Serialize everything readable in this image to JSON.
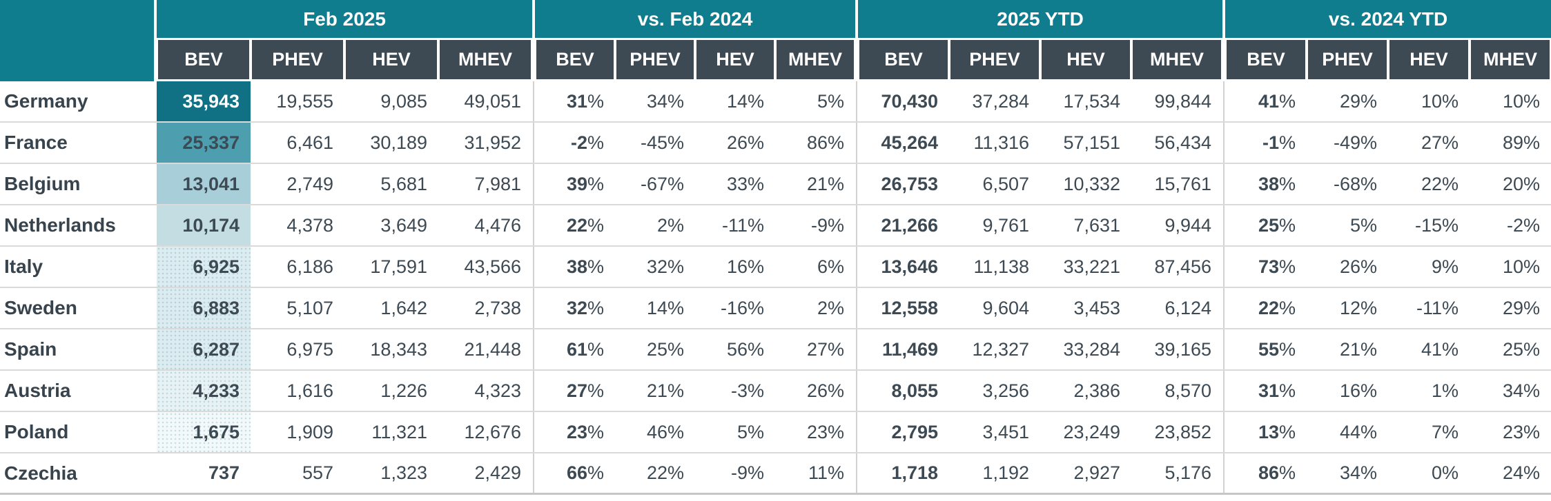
{
  "colors": {
    "header_teal": "#0f7d8d",
    "subheader_slate": "#3d4953",
    "body_text": "#3d4a54",
    "row_line": "#dadada",
    "group_divider_line": "#d2d2d2",
    "bottom_line": "#c3c7c9",
    "heat_scale_max": "#0f7183",
    "heat_scale_min": "#ffffff"
  },
  "chart_data": {
    "type": "table",
    "legend_note": "BEV column for Feb 2025 is shaded as a heatmap by sales volume",
    "col_groups": [
      {
        "label": "Feb 2025",
        "sub": [
          "BEV",
          "PHEV",
          "HEV",
          "MHEV"
        ]
      },
      {
        "label": "vs. Feb 2024",
        "sub": [
          "BEV",
          "PHEV",
          "HEV",
          "MHEV"
        ]
      },
      {
        "label": "2025 YTD",
        "sub": [
          "BEV",
          "PHEV",
          "HEV",
          "MHEV"
        ]
      },
      {
        "label": "vs. 2024 YTD",
        "sub": [
          "BEV",
          "PHEV",
          "HEV",
          "MHEV"
        ]
      }
    ],
    "rows": [
      {
        "country": "Germany",
        "heat": {
          "bg": "#0f7183",
          "light": true,
          "dots": false
        },
        "feb": [
          "35,943",
          "19,555",
          "9,085",
          "49,051"
        ],
        "vs_feb": [
          "31%",
          "34%",
          "14%",
          "5%"
        ],
        "ytd": [
          "70,430",
          "37,284",
          "17,534",
          "99,844"
        ],
        "vs_ytd": [
          "41%",
          "29%",
          "10%",
          "10%"
        ]
      },
      {
        "country": "France",
        "heat": {
          "bg": "#4d9eae",
          "light": false,
          "dots": false
        },
        "feb": [
          "25,337",
          "6,461",
          "30,189",
          "31,952"
        ],
        "vs_feb": [
          "-2%",
          "-45%",
          "26%",
          "86%"
        ],
        "ytd": [
          "45,264",
          "11,316",
          "57,151",
          "56,434"
        ],
        "vs_ytd": [
          "-1%",
          "-49%",
          "27%",
          "89%"
        ]
      },
      {
        "country": "Belgium",
        "heat": {
          "bg": "#a8cfd9",
          "light": false,
          "dots": false
        },
        "feb": [
          "13,041",
          "2,749",
          "5,681",
          "7,981"
        ],
        "vs_feb": [
          "39%",
          "-67%",
          "33%",
          "21%"
        ],
        "ytd": [
          "26,753",
          "6,507",
          "10,332",
          "15,761"
        ],
        "vs_ytd": [
          "38%",
          "-68%",
          "22%",
          "20%"
        ]
      },
      {
        "country": "Netherlands",
        "heat": {
          "bg": "#c3dde3",
          "light": false,
          "dots": false
        },
        "feb": [
          "10,174",
          "4,378",
          "3,649",
          "4,476"
        ],
        "vs_feb": [
          "22%",
          "2%",
          "-11%",
          "-9%"
        ],
        "ytd": [
          "21,266",
          "9,761",
          "7,631",
          "9,944"
        ],
        "vs_ytd": [
          "25%",
          "5%",
          "-15%",
          "-2%"
        ]
      },
      {
        "country": "Italy",
        "heat": {
          "bg": "#ddecf0",
          "light": false,
          "dots": true
        },
        "feb": [
          "6,925",
          "6,186",
          "17,591",
          "43,566"
        ],
        "vs_feb": [
          "38%",
          "32%",
          "16%",
          "6%"
        ],
        "ytd": [
          "13,646",
          "11,138",
          "33,221",
          "87,456"
        ],
        "vs_ytd": [
          "73%",
          "26%",
          "9%",
          "10%"
        ]
      },
      {
        "country": "Sweden",
        "heat": {
          "bg": "#dcebef",
          "light": false,
          "dots": true
        },
        "feb": [
          "6,883",
          "5,107",
          "1,642",
          "2,738"
        ],
        "vs_feb": [
          "32%",
          "14%",
          "-16%",
          "2%"
        ],
        "ytd": [
          "12,558",
          "9,604",
          "3,453",
          "6,124"
        ],
        "vs_ytd": [
          "22%",
          "12%",
          "-11%",
          "29%"
        ]
      },
      {
        "country": "Spain",
        "heat": {
          "bg": "#ddecf0",
          "light": false,
          "dots": true
        },
        "feb": [
          "6,287",
          "6,975",
          "18,343",
          "21,448"
        ],
        "vs_feb": [
          "61%",
          "25%",
          "56%",
          "27%"
        ],
        "ytd": [
          "11,469",
          "12,327",
          "33,284",
          "39,165"
        ],
        "vs_ytd": [
          "55%",
          "21%",
          "41%",
          "25%"
        ]
      },
      {
        "country": "Austria",
        "heat": {
          "bg": "#e8f2f5",
          "light": false,
          "dots": true
        },
        "feb": [
          "4,233",
          "1,616",
          "1,226",
          "4,323"
        ],
        "vs_feb": [
          "27%",
          "21%",
          "-3%",
          "26%"
        ],
        "ytd": [
          "8,055",
          "3,256",
          "2,386",
          "8,570"
        ],
        "vs_ytd": [
          "31%",
          "16%",
          "1%",
          "34%"
        ]
      },
      {
        "country": "Poland",
        "heat": {
          "bg": "#f3f9fa",
          "light": false,
          "dots": true
        },
        "feb": [
          "1,675",
          "1,909",
          "11,321",
          "12,676"
        ],
        "vs_feb": [
          "23%",
          "46%",
          "5%",
          "23%"
        ],
        "ytd": [
          "2,795",
          "3,451",
          "23,249",
          "23,852"
        ],
        "vs_ytd": [
          "13%",
          "44%",
          "7%",
          "23%"
        ]
      },
      {
        "country": "Czechia",
        "heat": {
          "bg": "#ffffff",
          "light": false,
          "dots": false
        },
        "feb": [
          "737",
          "557",
          "1,323",
          "2,429"
        ],
        "vs_feb": [
          "66%",
          "22%",
          "-9%",
          "11%"
        ],
        "ytd": [
          "1,718",
          "1,192",
          "2,927",
          "5,176"
        ],
        "vs_ytd": [
          "86%",
          "34%",
          "0%",
          "24%"
        ]
      }
    ]
  }
}
